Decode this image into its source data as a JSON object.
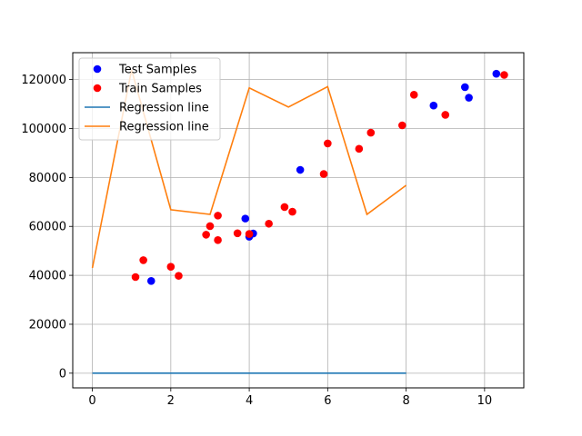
{
  "chart_data": {
    "type": "scatter",
    "title": "",
    "xlabel": "",
    "ylabel": "",
    "xlim": [
      -0.5,
      11.0
    ],
    "ylim": [
      -6000,
      131000
    ],
    "xticks": [
      0,
      2,
      4,
      6,
      8,
      10
    ],
    "yticks": [
      0,
      20000,
      40000,
      60000,
      80000,
      100000,
      120000
    ],
    "grid": true,
    "legend_position": "top-left",
    "series": [
      {
        "name": "Test Samples",
        "kind": "scatter",
        "color": "#0000ff",
        "points": [
          [
            1.5,
            37700
          ],
          [
            3.9,
            63200
          ],
          [
            4.0,
            55800
          ],
          [
            4.1,
            57100
          ],
          [
            5.3,
            83100
          ],
          [
            8.7,
            109400
          ],
          [
            9.5,
            116900
          ],
          [
            9.6,
            112600
          ],
          [
            10.3,
            122400
          ]
        ]
      },
      {
        "name": "Train Samples",
        "kind": "scatter",
        "color": "#ff0000",
        "points": [
          [
            1.1,
            39300
          ],
          [
            1.3,
            46200
          ],
          [
            2.0,
            43500
          ],
          [
            2.2,
            39800
          ],
          [
            2.9,
            56600
          ],
          [
            3.0,
            60100
          ],
          [
            3.2,
            64400
          ],
          [
            3.2,
            54400
          ],
          [
            3.7,
            57200
          ],
          [
            4.0,
            56900
          ],
          [
            4.5,
            61100
          ],
          [
            4.9,
            67900
          ],
          [
            5.1,
            66000
          ],
          [
            5.9,
            81400
          ],
          [
            6.0,
            93900
          ],
          [
            6.8,
            91700
          ],
          [
            7.1,
            98300
          ],
          [
            7.9,
            101300
          ],
          [
            8.2,
            113800
          ],
          [
            9.0,
            105600
          ],
          [
            10.5,
            121900
          ]
        ]
      },
      {
        "name": "Regression line",
        "kind": "line",
        "color": "#1f77b4",
        "points": [
          [
            0,
            0
          ],
          [
            1,
            0
          ],
          [
            2,
            0
          ],
          [
            3,
            0
          ],
          [
            4,
            0
          ],
          [
            5,
            0
          ],
          [
            6,
            0
          ],
          [
            7,
            0
          ],
          [
            8,
            0
          ]
        ]
      },
      {
        "name": "Regression line",
        "kind": "line",
        "color": "#ff7f0e",
        "points": [
          [
            0,
            43000
          ],
          [
            1,
            124000
          ],
          [
            2,
            66800
          ],
          [
            3,
            64900
          ],
          [
            4,
            116600
          ],
          [
            5,
            108800
          ],
          [
            6,
            117100
          ],
          [
            7,
            64900
          ],
          [
            8,
            76800
          ]
        ]
      }
    ]
  }
}
